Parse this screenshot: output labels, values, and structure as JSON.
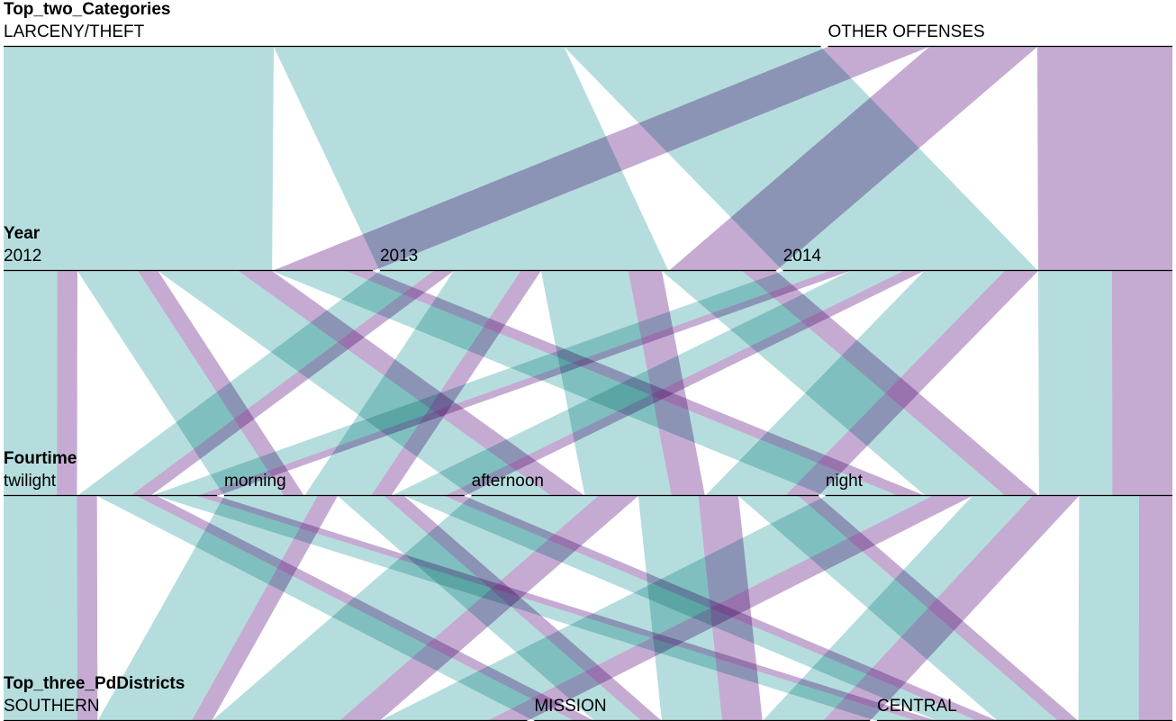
{
  "colors": {
    "LARCENY/THEFT": "#7fc4c4",
    "OTHER OFFENSES": "#9b6eb1",
    "ribbon_opacity": 0.58,
    "background": "#ffffff"
  },
  "chart_data": {
    "type": "parallel-sets",
    "color_by": "Top_two_Categories",
    "dimensions": [
      {
        "name": "Top_two_Categories",
        "categories": [
          "LARCENY/THEFT",
          "OTHER OFFENSES"
        ]
      },
      {
        "name": "Year",
        "categories": [
          "2012",
          "2013",
          "2014"
        ]
      },
      {
        "name": "Fourtime",
        "categories": [
          "twilight",
          "morning",
          "afternoon",
          "night"
        ]
      },
      {
        "name": "Top_three_PdDistricts",
        "categories": [
          "SOUTHERN",
          "MISSION",
          "CENTRAL"
        ]
      }
    ],
    "flows": [
      {
        "path": [
          "LARCENY/THEFT",
          "2012",
          "twilight",
          "SOUTHERN"
        ],
        "value": 4
      },
      {
        "path": [
          "LARCENY/THEFT",
          "2012",
          "twilight",
          "MISSION"
        ],
        "value": 2
      },
      {
        "path": [
          "LARCENY/THEFT",
          "2012",
          "twilight",
          "CENTRAL"
        ],
        "value": 2
      },
      {
        "path": [
          "LARCENY/THEFT",
          "2012",
          "morning",
          "SOUTHERN"
        ],
        "value": 5
      },
      {
        "path": [
          "LARCENY/THEFT",
          "2012",
          "morning",
          "MISSION"
        ],
        "value": 2
      },
      {
        "path": [
          "LARCENY/THEFT",
          "2012",
          "morning",
          "CENTRAL"
        ],
        "value": 2
      },
      {
        "path": [
          "LARCENY/THEFT",
          "2012",
          "afternoon",
          "SOUTHERN"
        ],
        "value": 6
      },
      {
        "path": [
          "LARCENY/THEFT",
          "2012",
          "afternoon",
          "MISSION"
        ],
        "value": 3
      },
      {
        "path": [
          "LARCENY/THEFT",
          "2012",
          "afternoon",
          "CENTRAL"
        ],
        "value": 3
      },
      {
        "path": [
          "LARCENY/THEFT",
          "2012",
          "night",
          "SOUTHERN"
        ],
        "value": 5
      },
      {
        "path": [
          "LARCENY/THEFT",
          "2012",
          "night",
          "MISSION"
        ],
        "value": 3
      },
      {
        "path": [
          "LARCENY/THEFT",
          "2012",
          "night",
          "CENTRAL"
        ],
        "value": 3
      },
      {
        "path": [
          "LARCENY/THEFT",
          "2013",
          "twilight",
          "SOUTHERN"
        ],
        "value": 4
      },
      {
        "path": [
          "LARCENY/THEFT",
          "2013",
          "twilight",
          "MISSION"
        ],
        "value": 2
      },
      {
        "path": [
          "LARCENY/THEFT",
          "2013",
          "twilight",
          "CENTRAL"
        ],
        "value": 2
      },
      {
        "path": [
          "LARCENY/THEFT",
          "2013",
          "morning",
          "SOUTHERN"
        ],
        "value": 5
      },
      {
        "path": [
          "LARCENY/THEFT",
          "2013",
          "morning",
          "MISSION"
        ],
        "value": 3
      },
      {
        "path": [
          "LARCENY/THEFT",
          "2013",
          "morning",
          "CENTRAL"
        ],
        "value": 2
      },
      {
        "path": [
          "LARCENY/THEFT",
          "2013",
          "afternoon",
          "SOUTHERN"
        ],
        "value": 7
      },
      {
        "path": [
          "LARCENY/THEFT",
          "2013",
          "afternoon",
          "MISSION"
        ],
        "value": 3
      },
      {
        "path": [
          "LARCENY/THEFT",
          "2013",
          "afternoon",
          "CENTRAL"
        ],
        "value": 3
      },
      {
        "path": [
          "LARCENY/THEFT",
          "2013",
          "night",
          "SOUTHERN"
        ],
        "value": 6
      },
      {
        "path": [
          "LARCENY/THEFT",
          "2013",
          "night",
          "MISSION"
        ],
        "value": 3
      },
      {
        "path": [
          "LARCENY/THEFT",
          "2013",
          "night",
          "CENTRAL"
        ],
        "value": 3
      },
      {
        "path": [
          "LARCENY/THEFT",
          "2014",
          "twilight",
          "SOUTHERN"
        ],
        "value": 3
      },
      {
        "path": [
          "LARCENY/THEFT",
          "2014",
          "twilight",
          "MISSION"
        ],
        "value": 2
      },
      {
        "path": [
          "LARCENY/THEFT",
          "2014",
          "twilight",
          "CENTRAL"
        ],
        "value": 2
      },
      {
        "path": [
          "LARCENY/THEFT",
          "2014",
          "morning",
          "SOUTHERN"
        ],
        "value": 4
      },
      {
        "path": [
          "LARCENY/THEFT",
          "2014",
          "morning",
          "MISSION"
        ],
        "value": 2
      },
      {
        "path": [
          "LARCENY/THEFT",
          "2014",
          "morning",
          "CENTRAL"
        ],
        "value": 2
      },
      {
        "path": [
          "LARCENY/THEFT",
          "2014",
          "afternoon",
          "SOUTHERN"
        ],
        "value": 6
      },
      {
        "path": [
          "LARCENY/THEFT",
          "2014",
          "afternoon",
          "MISSION"
        ],
        "value": 3
      },
      {
        "path": [
          "LARCENY/THEFT",
          "2014",
          "afternoon",
          "CENTRAL"
        ],
        "value": 3
      },
      {
        "path": [
          "LARCENY/THEFT",
          "2014",
          "night",
          "SOUTHERN"
        ],
        "value": 5
      },
      {
        "path": [
          "LARCENY/THEFT",
          "2014",
          "night",
          "MISSION"
        ],
        "value": 3
      },
      {
        "path": [
          "LARCENY/THEFT",
          "2014",
          "night",
          "CENTRAL"
        ],
        "value": 3
      },
      {
        "path": [
          "OTHER OFFENSES",
          "2012",
          "twilight",
          "SOUTHERN"
        ],
        "value": 1
      },
      {
        "path": [
          "OTHER OFFENSES",
          "2012",
          "twilight",
          "MISSION"
        ],
        "value": 1
      },
      {
        "path": [
          "OTHER OFFENSES",
          "2012",
          "twilight",
          "CENTRAL"
        ],
        "value": 1
      },
      {
        "path": [
          "OTHER OFFENSES",
          "2012",
          "morning",
          "SOUTHERN"
        ],
        "value": 1
      },
      {
        "path": [
          "OTHER OFFENSES",
          "2012",
          "morning",
          "MISSION"
        ],
        "value": 1
      },
      {
        "path": [
          "OTHER OFFENSES",
          "2012",
          "morning",
          "CENTRAL"
        ],
        "value": 1
      },
      {
        "path": [
          "OTHER OFFENSES",
          "2012",
          "afternoon",
          "SOUTHERN"
        ],
        "value": 2
      },
      {
        "path": [
          "OTHER OFFENSES",
          "2012",
          "afternoon",
          "MISSION"
        ],
        "value": 2
      },
      {
        "path": [
          "OTHER OFFENSES",
          "2012",
          "afternoon",
          "CENTRAL"
        ],
        "value": 1
      },
      {
        "path": [
          "OTHER OFFENSES",
          "2012",
          "night",
          "SOUTHERN"
        ],
        "value": 1
      },
      {
        "path": [
          "OTHER OFFENSES",
          "2012",
          "night",
          "MISSION"
        ],
        "value": 2
      },
      {
        "path": [
          "OTHER OFFENSES",
          "2012",
          "night",
          "CENTRAL"
        ],
        "value": 1
      },
      {
        "path": [
          "OTHER OFFENSES",
          "2013",
          "twilight",
          "SOUTHERN"
        ],
        "value": 1
      },
      {
        "path": [
          "OTHER OFFENSES",
          "2013",
          "twilight",
          "MISSION"
        ],
        "value": 1
      },
      {
        "path": [
          "OTHER OFFENSES",
          "2013",
          "twilight",
          "CENTRAL"
        ],
        "value": 1
      },
      {
        "path": [
          "OTHER OFFENSES",
          "2013",
          "morning",
          "SOUTHERN"
        ],
        "value": 1
      },
      {
        "path": [
          "OTHER OFFENSES",
          "2013",
          "morning",
          "MISSION"
        ],
        "value": 1
      },
      {
        "path": [
          "OTHER OFFENSES",
          "2013",
          "morning",
          "CENTRAL"
        ],
        "value": 1
      },
      {
        "path": [
          "OTHER OFFENSES",
          "2013",
          "afternoon",
          "SOUTHERN"
        ],
        "value": 2
      },
      {
        "path": [
          "OTHER OFFENSES",
          "2013",
          "afternoon",
          "MISSION"
        ],
        "value": 2
      },
      {
        "path": [
          "OTHER OFFENSES",
          "2013",
          "afternoon",
          "CENTRAL"
        ],
        "value": 1
      },
      {
        "path": [
          "OTHER OFFENSES",
          "2013",
          "night",
          "SOUTHERN"
        ],
        "value": 2
      },
      {
        "path": [
          "OTHER OFFENSES",
          "2013",
          "night",
          "MISSION"
        ],
        "value": 2
      },
      {
        "path": [
          "OTHER OFFENSES",
          "2013",
          "night",
          "CENTRAL"
        ],
        "value": 1
      },
      {
        "path": [
          "OTHER OFFENSES",
          "2014",
          "twilight",
          "SOUTHERN"
        ],
        "value": 1
      },
      {
        "path": [
          "OTHER OFFENSES",
          "2014",
          "twilight",
          "MISSION"
        ],
        "value": 1
      },
      {
        "path": [
          "OTHER OFFENSES",
          "2014",
          "twilight",
          "CENTRAL"
        ],
        "value": 1
      },
      {
        "path": [
          "OTHER OFFENSES",
          "2014",
          "morning",
          "SOUTHERN"
        ],
        "value": 1
      },
      {
        "path": [
          "OTHER OFFENSES",
          "2014",
          "morning",
          "MISSION"
        ],
        "value": 1
      },
      {
        "path": [
          "OTHER OFFENSES",
          "2014",
          "morning",
          "CENTRAL"
        ],
        "value": 1
      },
      {
        "path": [
          "OTHER OFFENSES",
          "2014",
          "afternoon",
          "SOUTHERN"
        ],
        "value": 2
      },
      {
        "path": [
          "OTHER OFFENSES",
          "2014",
          "afternoon",
          "MISSION"
        ],
        "value": 2
      },
      {
        "path": [
          "OTHER OFFENSES",
          "2014",
          "afternoon",
          "CENTRAL"
        ],
        "value": 1
      },
      {
        "path": [
          "OTHER OFFENSES",
          "2014",
          "night",
          "SOUTHERN"
        ],
        "value": 3
      },
      {
        "path": [
          "OTHER OFFENSES",
          "2014",
          "night",
          "MISSION"
        ],
        "value": 3
      },
      {
        "path": [
          "OTHER OFFENSES",
          "2014",
          "night",
          "CENTRAL"
        ],
        "value": 3
      }
    ]
  }
}
